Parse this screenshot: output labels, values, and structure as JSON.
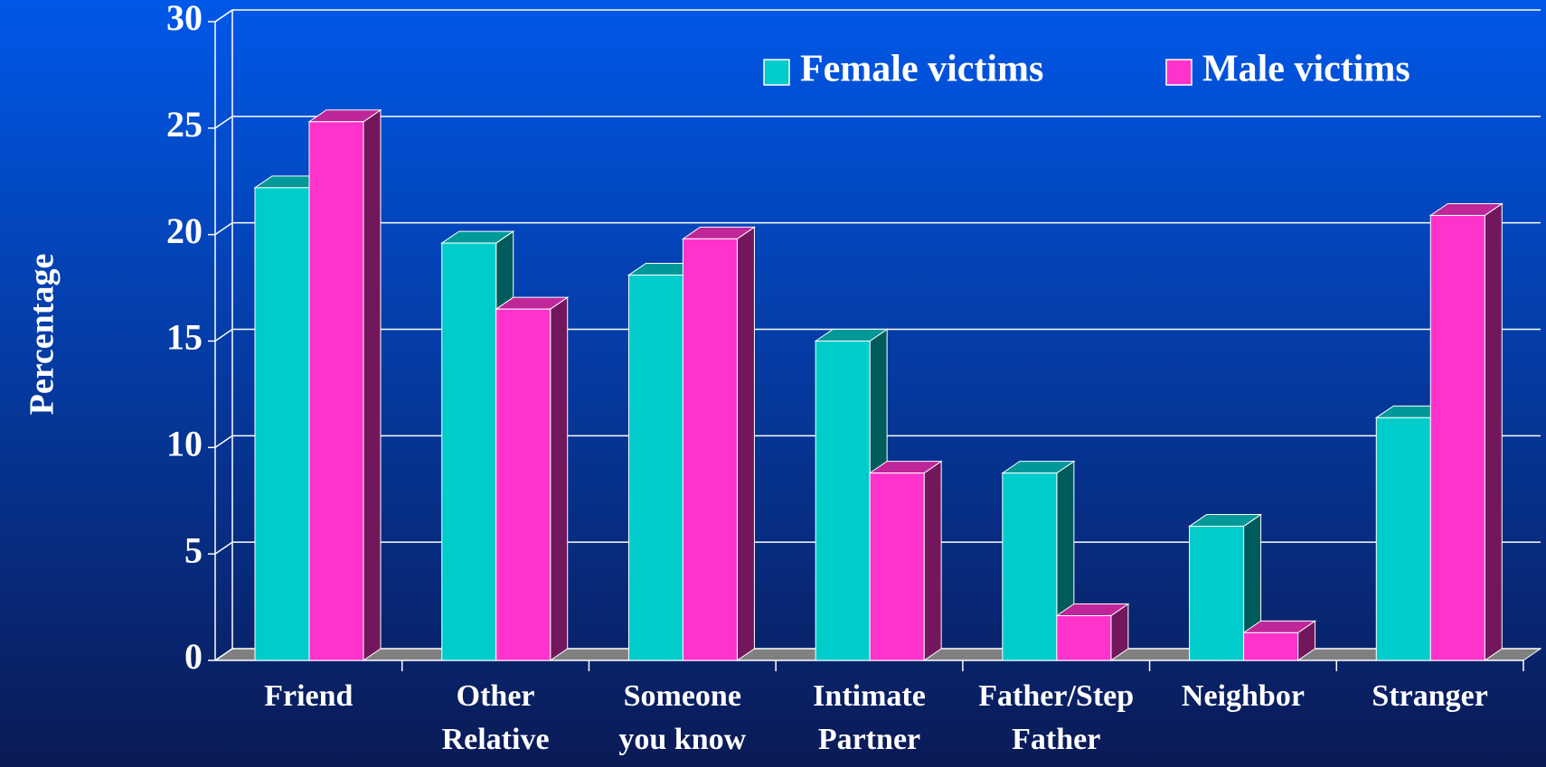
{
  "chart_data": {
    "type": "bar3d",
    "y_label": "Percentage",
    "categories": [
      [
        "Friend"
      ],
      [
        "Other",
        "Relative"
      ],
      [
        "Someone",
        "you know"
      ],
      [
        "Intimate",
        "Partner"
      ],
      [
        "Father/Step",
        "Father"
      ],
      [
        "Neighbor"
      ],
      [
        "Stranger"
      ]
    ],
    "series": [
      {
        "name": "Female victims",
        "color": "#00cccc",
        "values": [
          22.2,
          19.6,
          18.1,
          15.0,
          8.8,
          6.3,
          11.4
        ]
      },
      {
        "name": "Male victims",
        "color": "#ff33cc",
        "values": [
          25.3,
          16.5,
          19.8,
          8.8,
          2.1,
          1.3,
          20.9
        ]
      }
    ],
    "ylim": [
      0,
      30
    ],
    "yticks": [
      0,
      5,
      10,
      15,
      20,
      25,
      30
    ],
    "grid": true,
    "legend": "top-right"
  }
}
